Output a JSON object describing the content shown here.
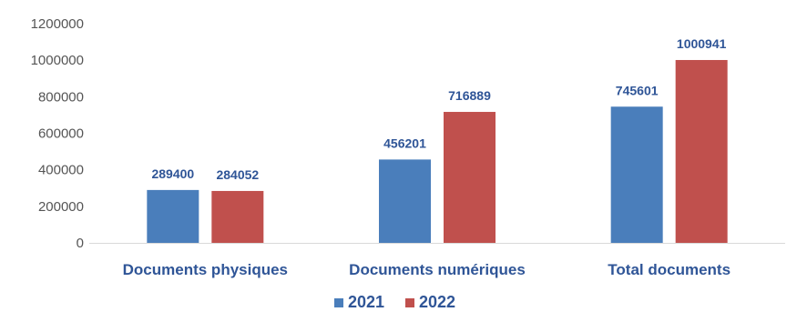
{
  "chart_data": {
    "type": "bar",
    "categories": [
      "Documents physiques",
      "Documents numériques",
      "Total documents"
    ],
    "series": [
      {
        "name": "2021",
        "values": [
          289400,
          456201,
          745601
        ],
        "color": "#4a7ebb"
      },
      {
        "name": "2022",
        "values": [
          284052,
          716889,
          1000941
        ],
        "color": "#c0504d"
      }
    ],
    "ylim": [
      0,
      1200000
    ],
    "yticks": [
      0,
      200000,
      400000,
      600000,
      800000,
      1000000,
      1200000
    ],
    "grid": false,
    "legend": "bottom",
    "data_labels": true,
    "label_color": "#2f5597",
    "axis_color": "#d9d9d9"
  }
}
